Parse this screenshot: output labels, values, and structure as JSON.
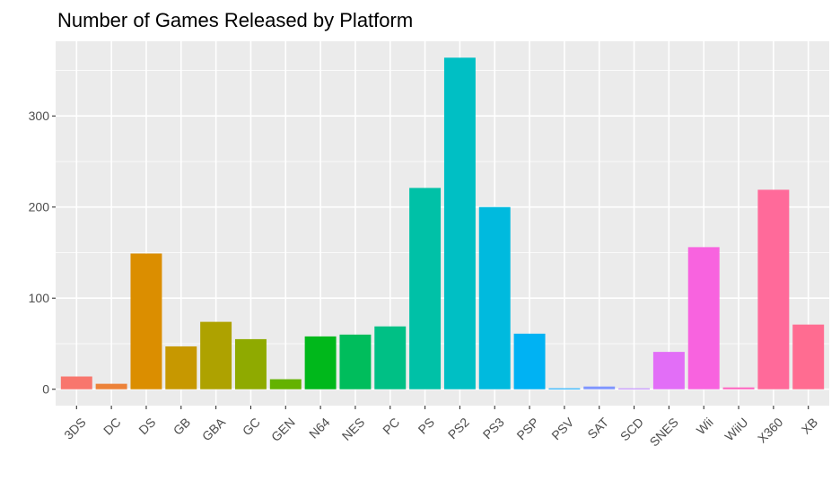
{
  "chart_data": {
    "type": "bar",
    "title": "Number of Games Released by Platform",
    "xlabel": "",
    "ylabel": "",
    "categories": [
      "3DS",
      "DC",
      "DS",
      "GB",
      "GBA",
      "GC",
      "GEN",
      "N64",
      "NES",
      "PC",
      "PS",
      "PS2",
      "PS3",
      "PSP",
      "PSV",
      "SAT",
      "SCD",
      "SNES",
      "Wii",
      "WiiU",
      "X360",
      "XB"
    ],
    "values": [
      14,
      6,
      149,
      47,
      74,
      55,
      11,
      58,
      60,
      69,
      221,
      364,
      200,
      61,
      1,
      3,
      1,
      41,
      156,
      2,
      219,
      71
    ],
    "colors": [
      "#F8766D",
      "#EC8239",
      "#DB8E00",
      "#C79800",
      "#AEA200",
      "#8FAA00",
      "#64B200",
      "#00B81B",
      "#00BD5C",
      "#00C085",
      "#00C1A7",
      "#00BFC4",
      "#00BADE",
      "#00B2F3",
      "#00A6FF",
      "#7F96FF",
      "#BC81FF",
      "#E26EF7",
      "#F863DF",
      "#FF62BF",
      "#FF6A9A",
      "#FF6C91"
    ],
    "y_ticks": [
      0,
      100,
      200,
      300
    ],
    "ylim": [
      -18,
      382
    ],
    "grid": true,
    "legend": "none"
  }
}
